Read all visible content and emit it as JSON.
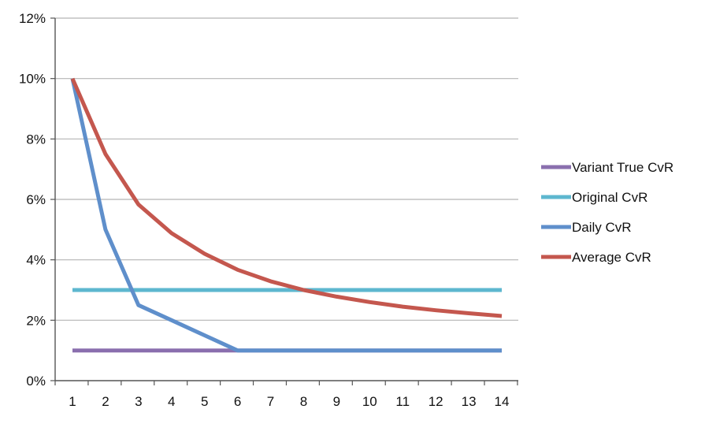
{
  "chart_data": {
    "type": "line",
    "title": "",
    "xlabel": "",
    "ylabel": "",
    "x": [
      1,
      2,
      3,
      4,
      5,
      6,
      7,
      8,
      9,
      10,
      11,
      12,
      13,
      14
    ],
    "ylim": [
      0,
      12
    ],
    "yticks": [
      "0%",
      "2%",
      "4%",
      "6%",
      "8%",
      "10%",
      "12%"
    ],
    "xticks": [
      "1",
      "2",
      "3",
      "4",
      "5",
      "6",
      "7",
      "8",
      "9",
      "10",
      "11",
      "12",
      "13",
      "14"
    ],
    "grid": "horizontal",
    "legend_position": "right",
    "series": [
      {
        "name": "Variant True CvR",
        "color": "#8a6fae",
        "values": [
          1,
          1,
          1,
          1,
          1,
          1,
          1,
          1,
          1,
          1,
          1,
          1,
          1,
          1
        ]
      },
      {
        "name": "Original CvR",
        "color": "#5db7cf",
        "values": [
          3,
          3,
          3,
          3,
          3,
          3,
          3,
          3,
          3,
          3,
          3,
          3,
          3,
          3
        ]
      },
      {
        "name": "Daily CvR",
        "color": "#5f8fcb",
        "values": [
          10,
          5,
          2.5,
          2,
          1.5,
          1,
          1,
          1,
          1,
          1,
          1,
          1,
          1,
          1
        ]
      },
      {
        "name": "Average CvR",
        "color": "#c4574e",
        "values": [
          10,
          7.5,
          5.83,
          4.88,
          4.2,
          3.67,
          3.29,
          3.0,
          2.78,
          2.6,
          2.45,
          2.33,
          2.23,
          2.14
        ]
      }
    ]
  }
}
